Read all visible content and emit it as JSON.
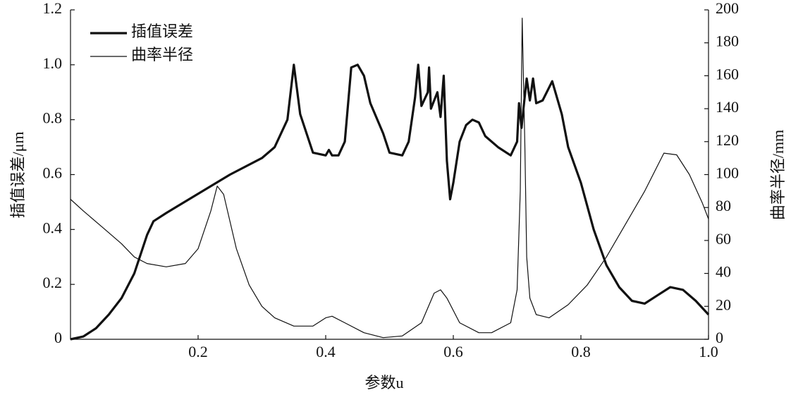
{
  "chart_data": {
    "type": "line",
    "x_label": "参数u",
    "y_label": "插值误差/μm",
    "y2_label": "曲率半径/mm",
    "xlim": [
      0,
      1
    ],
    "xticks": [
      0.2,
      0.4,
      0.6,
      0.8,
      {
        "value": 1,
        "label": "1.0"
      }
    ],
    "ylim": [
      0,
      1.2
    ],
    "yticks": [
      0,
      0.2,
      0.4,
      0.6,
      0.8,
      {
        "value": 1,
        "label": "1.0"
      },
      1.2
    ],
    "y2lim": [
      0,
      200
    ],
    "y2ticks": [
      0,
      20,
      40,
      60,
      80,
      100,
      120,
      140,
      160,
      180,
      200
    ],
    "legend": "upper left",
    "series": [
      {
        "name": "插值误差",
        "color": "#111111",
        "x": [
          0,
          0.02,
          0.04,
          0.06,
          0.08,
          0.1,
          0.12,
          0.13,
          0.15,
          0.2,
          0.25,
          0.3,
          0.32,
          0.34,
          0.35,
          0.36,
          0.38,
          0.4,
          0.405,
          0.41,
          0.42,
          0.43,
          0.44,
          0.45,
          0.46,
          0.47,
          0.49,
          0.5,
          0.52,
          0.53,
          0.54,
          0.545,
          0.55,
          0.56,
          0.562,
          0.565,
          0.575,
          0.58,
          0.585,
          0.59,
          0.595,
          0.6,
          0.61,
          0.62,
          0.63,
          0.64,
          0.65,
          0.67,
          0.69,
          0.7,
          0.703,
          0.707,
          0.71,
          0.715,
          0.72,
          0.725,
          0.73,
          0.74,
          0.755,
          0.77,
          0.78,
          0.8,
          0.82,
          0.84,
          0.86,
          0.88,
          0.9,
          0.92,
          0.94,
          0.96,
          0.98,
          1
        ],
        "values": [
          0,
          0.01,
          0.04,
          0.09,
          0.15,
          0.24,
          0.38,
          0.43,
          0.46,
          0.53,
          0.6,
          0.66,
          0.7,
          0.8,
          1.0,
          0.82,
          0.68,
          0.67,
          0.69,
          0.67,
          0.67,
          0.72,
          0.99,
          1.0,
          0.96,
          0.86,
          0.75,
          0.68,
          0.67,
          0.72,
          0.88,
          1.0,
          0.85,
          0.9,
          0.99,
          0.84,
          0.9,
          0.81,
          0.96,
          0.65,
          0.51,
          0.57,
          0.72,
          0.78,
          0.8,
          0.79,
          0.74,
          0.7,
          0.67,
          0.72,
          0.86,
          0.77,
          0.84,
          0.95,
          0.87,
          0.95,
          0.86,
          0.87,
          0.94,
          0.82,
          0.7,
          0.57,
          0.4,
          0.27,
          0.19,
          0.14,
          0.13,
          0.16,
          0.19,
          0.18,
          0.14,
          0.09
        ]
      },
      {
        "name": "曲率半径",
        "color": "#111111",
        "axis": "y2",
        "x": [
          0,
          0.02,
          0.05,
          0.08,
          0.1,
          0.12,
          0.15,
          0.18,
          0.2,
          0.22,
          0.23,
          0.24,
          0.26,
          0.28,
          0.3,
          0.32,
          0.35,
          0.38,
          0.4,
          0.41,
          0.43,
          0.46,
          0.49,
          0.52,
          0.55,
          0.57,
          0.58,
          0.59,
          0.61,
          0.64,
          0.66,
          0.69,
          0.7,
          0.705,
          0.708,
          0.712,
          0.715,
          0.72,
          0.73,
          0.75,
          0.78,
          0.81,
          0.84,
          0.87,
          0.9,
          0.93,
          0.95,
          0.97,
          0.99,
          1
        ],
        "values": [
          85,
          78,
          68,
          58,
          50,
          46,
          44,
          46,
          55,
          78,
          93,
          88,
          55,
          33,
          20,
          13,
          8,
          8,
          13,
          14,
          10,
          4,
          1,
          2,
          10,
          28,
          30,
          25,
          10,
          4,
          4,
          10,
          30,
          90,
          195,
          120,
          50,
          25,
          15,
          13,
          21,
          33,
          50,
          70,
          90,
          113,
          112,
          100,
          83,
          73
        ]
      }
    ]
  }
}
